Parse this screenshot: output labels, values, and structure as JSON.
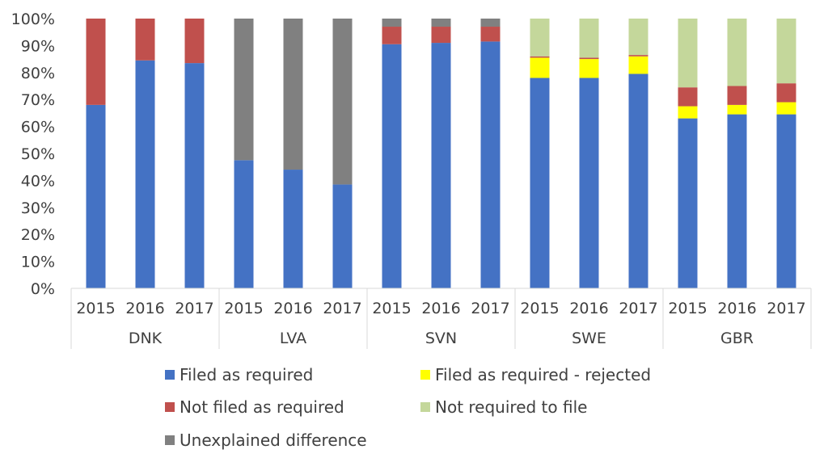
{
  "chart_data": {
    "type": "bar",
    "stacked": true,
    "percent": true,
    "groups": [
      "DNK",
      "LVA",
      "SVN",
      "SWE",
      "GBR"
    ],
    "years": [
      "2015",
      "2016",
      "2017"
    ],
    "y_ticks": [
      "0%",
      "10%",
      "20%",
      "30%",
      "40%",
      "50%",
      "60%",
      "70%",
      "80%",
      "90%",
      "100%"
    ],
    "ylim": [
      0,
      100
    ],
    "grid": false,
    "legend_position": "bottom",
    "series": [
      {
        "name": "Filed as required",
        "color": "#4472C4",
        "values": [
          68,
          84.5,
          83.5,
          47.5,
          44,
          38.5,
          90.5,
          91,
          91.5,
          78,
          78,
          79.5,
          63,
          64.5,
          64.5
        ]
      },
      {
        "name": "Filed as required - rejected",
        "color": "#FFFF00",
        "values": [
          0,
          0,
          0,
          0,
          0,
          0,
          0,
          0,
          0,
          7.5,
          7,
          6.5,
          4.5,
          3.5,
          4.5
        ]
      },
      {
        "name": "Not filed as required",
        "color": "#C0504D",
        "values": [
          32,
          15.5,
          16.5,
          0,
          0,
          0,
          6.5,
          6,
          5.5,
          0.5,
          0.5,
          0.5,
          7,
          7,
          7
        ]
      },
      {
        "name": "Not required to file",
        "color": "#C4D79B",
        "values": [
          0,
          0,
          0,
          0,
          0,
          0,
          0,
          0,
          0,
          14,
          14.5,
          13.5,
          25.5,
          25,
          24
        ]
      },
      {
        "name": "Unexplained difference",
        "color": "#808080",
        "values": [
          0,
          0,
          0,
          52.5,
          56,
          61.5,
          3,
          3,
          3,
          0,
          0,
          0,
          0,
          0,
          0
        ]
      }
    ]
  }
}
